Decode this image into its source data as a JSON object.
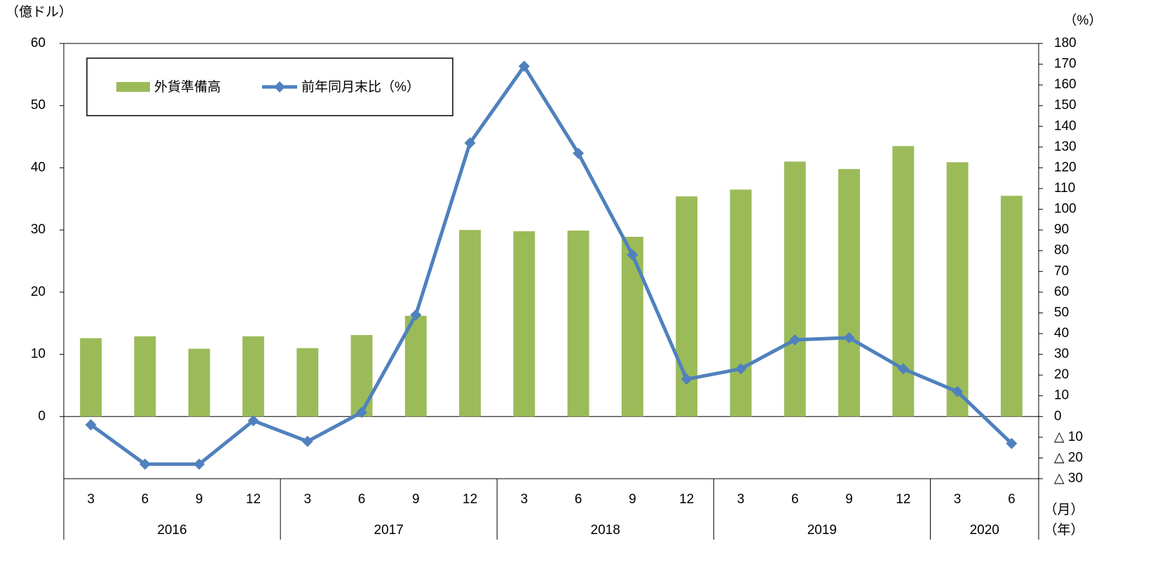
{
  "chart_data": {
    "type": "bar+line",
    "y_unit": "（億ドル）",
    "y2_unit": "（%）",
    "x_unit": "（月）",
    "group_unit": "（年）",
    "groups": [
      {
        "label": "2016",
        "categories": [
          "3",
          "6",
          "9",
          "12"
        ]
      },
      {
        "label": "2017",
        "categories": [
          "3",
          "6",
          "9",
          "12"
        ]
      },
      {
        "label": "2018",
        "categories": [
          "3",
          "6",
          "9",
          "12"
        ]
      },
      {
        "label": "2019",
        "categories": [
          "3",
          "6",
          "9",
          "12"
        ]
      },
      {
        "label": "2020",
        "categories": [
          "3",
          "6"
        ]
      }
    ],
    "series": [
      {
        "name": "外貨準備高",
        "type": "bar",
        "color": "#9bbb59",
        "values": [
          12.6,
          12.9,
          10.9,
          12.9,
          11.0,
          13.1,
          16.2,
          30.0,
          29.8,
          29.9,
          28.9,
          35.4,
          36.5,
          41.0,
          39.8,
          43.5,
          40.9,
          35.5
        ]
      },
      {
        "name": "前年同月末比（%）",
        "type": "line",
        "axis": "y2",
        "color": "#4f81bd",
        "values": [
          -4,
          -23,
          -23,
          -2,
          -12,
          2,
          49,
          132,
          169,
          127,
          78,
          18,
          23,
          37,
          38,
          23,
          12,
          -13
        ]
      }
    ],
    "ylim": [
      -10,
      60
    ],
    "yticks": [
      0,
      10,
      20,
      30,
      40,
      50,
      60
    ],
    "y2lim": [
      -30,
      180
    ],
    "y2ticks": [
      {
        "value": -30,
        "label": "△ 30"
      },
      {
        "value": -20,
        "label": "△ 20"
      },
      {
        "value": -10,
        "label": "△ 10"
      },
      0,
      10,
      20,
      30,
      40,
      50,
      60,
      70,
      80,
      90,
      100,
      110,
      120,
      130,
      140,
      150,
      160,
      170,
      180
    ],
    "legend": "top-left"
  }
}
